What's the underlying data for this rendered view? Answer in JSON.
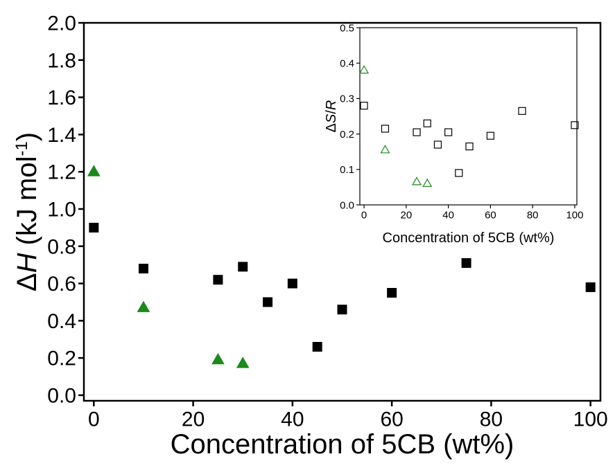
{
  "chart_data": [
    {
      "type": "scatter",
      "x_label": "Concentration of 5CB (wt%)",
      "y_label": [
        "Δ",
        "H",
        " (kJ mol",
        "-1",
        ")"
      ],
      "xlim": [
        -2,
        102
      ],
      "ylim": [
        -0.03,
        2.0
      ],
      "xticks": [
        0,
        20,
        40,
        60,
        80,
        100
      ],
      "yticks": [
        {
          "value": 0,
          "label": "0.0"
        },
        0.2,
        0.4,
        0.6,
        0.8,
        {
          "value": 1,
          "label": "1.0"
        },
        1.2,
        1.4,
        1.6,
        1.8,
        {
          "value": 2,
          "label": "2.0"
        }
      ],
      "series": [
        {
          "marker": "square",
          "filled": true,
          "color": "#000000",
          "x": [
            0,
            10,
            25,
            30,
            35,
            40,
            45,
            50,
            60,
            75,
            100
          ],
          "values": [
            0.9,
            0.68,
            0.62,
            0.69,
            0.5,
            0.6,
            0.26,
            0.46,
            0.55,
            0.71,
            0.58
          ]
        },
        {
          "marker": "triangle",
          "filled": true,
          "color": "#1a8a1a",
          "x": [
            0,
            10,
            25,
            30
          ],
          "values": [
            1.2,
            0.47,
            0.19,
            0.17
          ]
        }
      ]
    },
    {
      "type": "scatter",
      "x_label": "Concentration of 5CB (wt%)",
      "y_label": [
        "Δ",
        "S",
        "/",
        "R"
      ],
      "xlim": [
        -2,
        101
      ],
      "ylim": [
        0,
        0.5
      ],
      "xticks": [
        0,
        20,
        40,
        60,
        80,
        100
      ],
      "yticks": [
        {
          "value": 0,
          "label": "0.0"
        },
        0.1,
        0.2,
        0.3,
        0.4,
        0.5
      ],
      "series": [
        {
          "marker": "square",
          "filled": false,
          "color": "#000000",
          "x": [
            0,
            10,
            25,
            30,
            35,
            40,
            45,
            50,
            60,
            75,
            100
          ],
          "values": [
            0.28,
            0.215,
            0.205,
            0.23,
            0.17,
            0.205,
            0.09,
            0.165,
            0.195,
            0.265,
            0.225
          ]
        },
        {
          "marker": "triangle",
          "filled": false,
          "color": "#1a8a1a",
          "x": [
            0,
            10,
            25,
            30
          ],
          "values": [
            0.38,
            0.155,
            0.065,
            0.06
          ]
        }
      ]
    }
  ]
}
